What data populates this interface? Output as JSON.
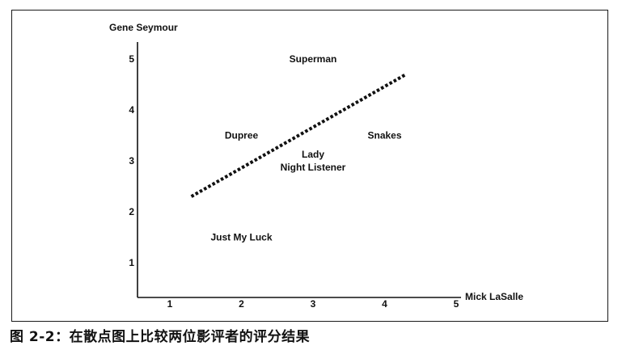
{
  "chart_data": {
    "type": "scatter",
    "title": "",
    "xlabel": "Mick LaSalle",
    "ylabel": "Gene Seymour",
    "xticks": [
      1,
      2,
      3,
      4,
      5
    ],
    "yticks": [
      1,
      2,
      3,
      4,
      5
    ],
    "xlim": [
      0.6,
      5.2
    ],
    "ylim": [
      0.5,
      5.6
    ],
    "points": [
      {
        "label": "Superman",
        "x": 3.0,
        "y": 5.0
      },
      {
        "label": "Dupree",
        "x": 2.0,
        "y": 3.5
      },
      {
        "label": "Snakes",
        "x": 4.0,
        "y": 3.5
      },
      {
        "label": "Lady",
        "label2": "Night Listener",
        "x": 3.0,
        "y": 3.0
      },
      {
        "label": "Just My Luck",
        "x": 2.0,
        "y": 1.5
      }
    ],
    "trendline": {
      "style": "dotted",
      "x": [
        1.3,
        4.3
      ],
      "y": [
        2.3,
        4.7
      ]
    },
    "grid": false,
    "legend": "none"
  },
  "caption": "图 2-2：在散点图上比较两位影评者的评分结果"
}
